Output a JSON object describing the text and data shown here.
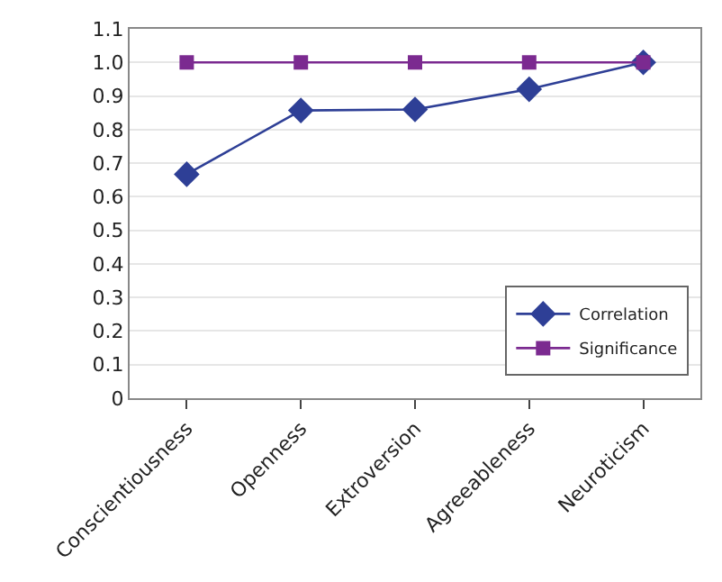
{
  "chart_data": {
    "type": "line",
    "categories": [
      "Conscientiousness",
      "Openness",
      "Extroversion",
      "Agreeableness",
      "Neuroticism"
    ],
    "series": [
      {
        "name": "Correlation",
        "color": "#2e3f96",
        "marker": "diamond",
        "values": [
          0.667,
          0.857,
          0.86,
          0.92,
          1.0
        ]
      },
      {
        "name": "Significance",
        "color": "#7b2a90",
        "marker": "square",
        "values": [
          1.0,
          1.0,
          1.0,
          1.0,
          1.0
        ]
      }
    ],
    "ylim": [
      0,
      1.1
    ],
    "yticks": [
      0,
      0.1,
      0.2,
      0.3,
      0.4,
      0.5,
      0.6,
      0.7,
      0.8,
      0.9,
      {
        "value": 1.0,
        "label": "1.0"
      },
      1.1
    ],
    "grid": "y",
    "legend": "bottom right",
    "line_style": "solid"
  }
}
